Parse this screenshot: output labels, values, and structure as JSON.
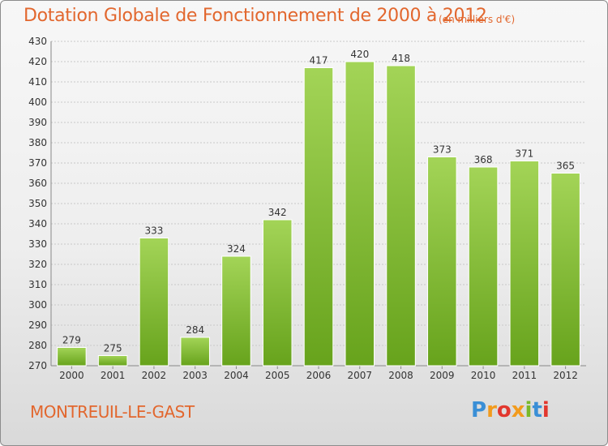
{
  "title": "Dotation Globale de Fonctionnement de 2000 à 2012",
  "subtitle": "(en milliers d'€)",
  "commune": "MONTREUIL-LE-GAST",
  "logo": {
    "letters": [
      "P",
      "r",
      "o",
      "x",
      "i",
      "t",
      "i"
    ],
    "colors": [
      "#3a8fd6",
      "#f29b1d",
      "#e2372e",
      "#f29b1d",
      "#7ab929",
      "#3a8fd6",
      "#e2372e"
    ]
  },
  "chart_data": {
    "type": "bar",
    "title": "Dotation Globale de Fonctionnement de 2000 à 2012",
    "subtitle": "(en milliers d'€)",
    "categories": [
      "2000",
      "2001",
      "2002",
      "2003",
      "2004",
      "2005",
      "2006",
      "2007",
      "2008",
      "2009",
      "2010",
      "2011",
      "2012"
    ],
    "values": [
      279,
      275,
      333,
      284,
      324,
      342,
      417,
      420,
      418,
      373,
      368,
      371,
      365
    ],
    "ylim": [
      270,
      430
    ],
    "yticks": [
      270,
      280,
      290,
      300,
      310,
      320,
      330,
      340,
      350,
      360,
      370,
      380,
      390,
      400,
      410,
      420,
      430
    ],
    "grid": true,
    "bar_color": "#7ab929",
    "bar_color_light": "#9bd04a"
  }
}
